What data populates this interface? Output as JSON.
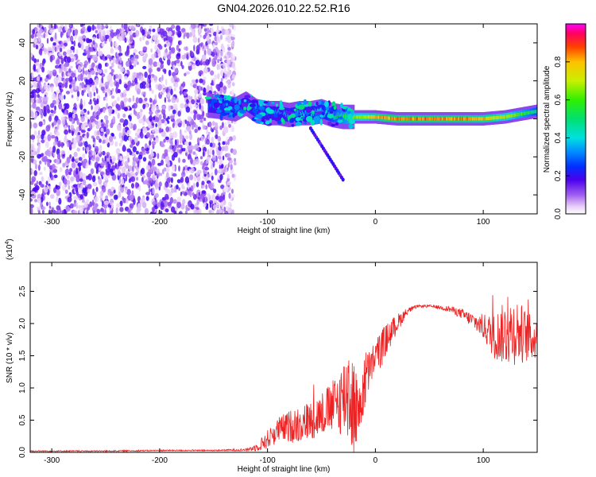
{
  "title": "GN04.2026.010.22.52.R16",
  "chart_data": [
    {
      "type": "heatmap",
      "xlabel": "Height of straight line (km)",
      "ylabel": "Frequency (Hz)",
      "xlim": [
        -320,
        150
      ],
      "ylim": [
        -50,
        50
      ],
      "xticks": [
        -300,
        -200,
        -100,
        0,
        100
      ],
      "yticks": [
        -40,
        -20,
        0,
        20,
        40
      ],
      "colorbar": {
        "label": "Normalized spectral amplitude",
        "ticks": [
          "0.0",
          "0.2",
          "0.4",
          "0.6",
          "0.8"
        ],
        "tick_values": [
          0.0,
          0.2,
          0.4,
          0.6,
          0.8
        ],
        "range": [
          0,
          1
        ]
      },
      "ridge": {
        "x": [
          -155,
          -140,
          -130,
          -120,
          -110,
          -100,
          -90,
          -80,
          -70,
          -60,
          -50,
          -40,
          -30,
          -20,
          -10,
          0,
          20,
          40,
          60,
          80,
          100,
          120,
          140,
          150
        ],
        "freq": [
          7,
          6,
          5,
          8,
          4,
          3,
          3,
          2,
          3,
          3,
          4,
          2,
          1,
          1,
          1,
          1,
          0,
          0,
          0,
          0,
          0,
          1,
          3,
          4
        ],
        "amplitude": [
          0.3,
          0.3,
          0.3,
          0.3,
          0.3,
          0.35,
          0.35,
          0.4,
          0.4,
          0.4,
          0.4,
          0.5,
          0.6,
          0.7,
          0.75,
          0.85,
          0.9,
          0.9,
          0.9,
          0.9,
          0.85,
          0.75,
          0.6,
          0.5
        ]
      },
      "noise_region_x": [
        -320,
        -130
      ]
    },
    {
      "type": "line",
      "xlabel": "Height of straight line (km)",
      "ylabel": "SNR (10 * v/v)",
      "yscale_label": "(x10",
      "yscale_exp": "4",
      "yscale_close": ")",
      "xlim": [
        -320,
        150
      ],
      "ylim": [
        0,
        2.95
      ],
      "xticks": [
        -300,
        -200,
        -100,
        0,
        100
      ],
      "yticks": [
        "0.0",
        "0.5",
        "1.0",
        "1.5",
        "2.0",
        "2.5"
      ],
      "ytick_values": [
        0,
        0.5,
        1.0,
        1.5,
        2.0,
        2.5
      ],
      "color": "#ee2222",
      "series": [
        {
          "x": [
            -320,
            -250,
            -200,
            -150,
            -120,
            -110,
            -100,
            -90,
            -80,
            -70,
            -60,
            -50,
            -40,
            -30,
            -25,
            -20,
            -15,
            -10,
            -5,
            0,
            5,
            10,
            20,
            30,
            40,
            50,
            60,
            70,
            80,
            90,
            100,
            110,
            120,
            130,
            140,
            150
          ],
          "y": [
            0.02,
            0.02,
            0.03,
            0.03,
            0.04,
            0.08,
            0.2,
            0.35,
            0.4,
            0.45,
            0.5,
            0.6,
            0.7,
            0.85,
            1.0,
            0.7,
            0.6,
            1.1,
            1.3,
            1.5,
            1.6,
            1.75,
            2.0,
            2.2,
            2.27,
            2.27,
            2.25,
            2.22,
            2.15,
            2.05,
            1.95,
            1.8,
            1.85,
            1.9,
            1.8,
            1.75
          ],
          "noise_amp": [
            0.01,
            0.01,
            0.01,
            0.01,
            0.02,
            0.06,
            0.15,
            0.2,
            0.25,
            0.3,
            0.3,
            0.35,
            0.4,
            0.6,
            0.9,
            0.8,
            0.4,
            0.5,
            0.3,
            0.25,
            0.3,
            0.25,
            0.15,
            0.05,
            0.02,
            0.02,
            0.03,
            0.05,
            0.08,
            0.12,
            0.2,
            0.35,
            0.5,
            0.55,
            0.4,
            0.3
          ]
        }
      ]
    }
  ]
}
